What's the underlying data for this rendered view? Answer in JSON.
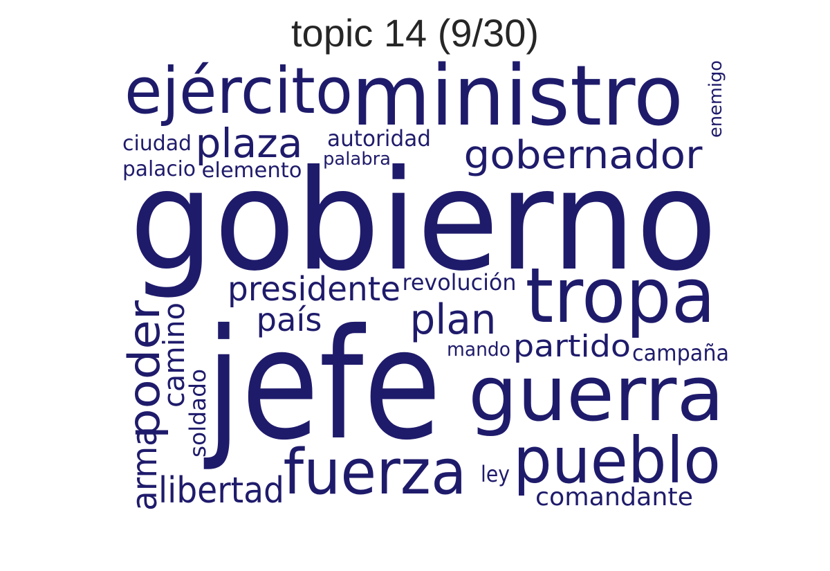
{
  "title": "topic 14 (9/30)",
  "word_color": "#1f1b6b",
  "words": {
    "gobierno": "gobierno",
    "jefe": "jefe",
    "ministro": "ministro",
    "ejercito": "ejército",
    "tropa": "tropa",
    "guerra": "guerra",
    "fuerza": "fuerza",
    "pueblo": "pueblo",
    "poder": "poder",
    "plaza": "plaza",
    "gobernador": "gobernador",
    "presidente": "presidente",
    "plan": "plan",
    "arma": "arma",
    "libertad": "libertad",
    "partido": "partido",
    "pais": "país",
    "camino": "camino",
    "comandante": "comandante",
    "revolucion": "revolución",
    "autoridad": "autoridad",
    "soldado": "soldado",
    "ciudad": "ciudad",
    "palacio": "palacio",
    "elemento": "elemento",
    "palabra": "palabra",
    "enemigo": "enemigo",
    "campana": "campaña",
    "mando": "mando",
    "ley": "ley"
  }
}
